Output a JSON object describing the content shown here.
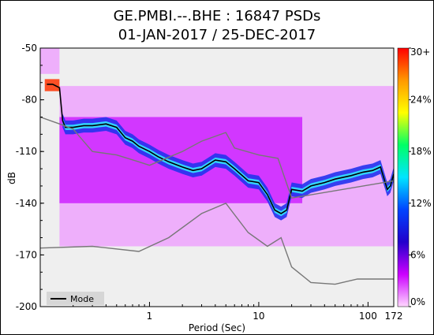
{
  "chart_data": {
    "type": "heatmap",
    "title": "GE.PMBI.--.BHE : 16847 PSDs",
    "subtitle": "01-JAN-2017 / 25-DEC-2017",
    "xlabel": "Period (Sec)",
    "ylabel": "dB",
    "x_scale": "log",
    "xlim": [
      0.1,
      172
    ],
    "ylim": [
      -200,
      -50
    ],
    "x_ticks": [
      1,
      10,
      100,
      172
    ],
    "x_tick_labels": [
      "1",
      "10",
      "100",
      "172"
    ],
    "y_ticks": [
      -50,
      -80,
      -110,
      -140,
      -170,
      -200
    ],
    "y_tick_labels": [
      "-50",
      "-80",
      "-110",
      "-140",
      "-170",
      "-200"
    ],
    "colorbar": {
      "labels": [
        "30+",
        "24%",
        "18%",
        "12%",
        "6%",
        "0%"
      ],
      "values": [
        30,
        24,
        18,
        12,
        6,
        0
      ],
      "colors": [
        "#ff0000",
        "#ff9900",
        "#ffff00",
        "#00ff66",
        "#00e5ff",
        "#0044ff",
        "#2200cc",
        "#cc00ff",
        "#ffd7ff"
      ]
    },
    "legend": {
      "placement": "bottom-left",
      "entries": [
        "Mode"
      ]
    },
    "background_color": "#efefef",
    "series": [
      {
        "name": "Mode",
        "color": "#000000",
        "points": [
          [
            0.115,
            -71
          ],
          [
            0.13,
            -71
          ],
          [
            0.15,
            -73
          ],
          [
            0.16,
            -92
          ],
          [
            0.17,
            -96
          ],
          [
            0.2,
            -96
          ],
          [
            0.25,
            -95
          ],
          [
            0.3,
            -95
          ],
          [
            0.4,
            -94
          ],
          [
            0.5,
            -96
          ],
          [
            0.6,
            -102
          ],
          [
            0.7,
            -104
          ],
          [
            0.8,
            -107
          ],
          [
            1.0,
            -110
          ],
          [
            1.2,
            -113
          ],
          [
            1.5,
            -116
          ],
          [
            2.0,
            -119
          ],
          [
            2.5,
            -121
          ],
          [
            3.0,
            -120
          ],
          [
            4.0,
            -115
          ],
          [
            5.0,
            -116
          ],
          [
            6.0,
            -120
          ],
          [
            8.0,
            -127
          ],
          [
            10.0,
            -128
          ],
          [
            12.0,
            -135
          ],
          [
            14.0,
            -144
          ],
          [
            16.0,
            -146
          ],
          [
            18.0,
            -144
          ],
          [
            20.0,
            -132
          ],
          [
            25.0,
            -133
          ],
          [
            30.0,
            -130
          ],
          [
            40.0,
            -128
          ],
          [
            50.0,
            -126
          ],
          [
            70.0,
            -124
          ],
          [
            90.0,
            -122
          ],
          [
            110.0,
            -121
          ],
          [
            130.0,
            -119
          ],
          [
            150.0,
            -132
          ],
          [
            160.0,
            -130
          ],
          [
            172.0,
            -123
          ]
        ]
      },
      {
        "name": "",
        "color": "#777777",
        "points": [
          [
            0.1,
            -90
          ],
          [
            0.15,
            -94
          ],
          [
            0.2,
            -97
          ],
          [
            0.3,
            -110
          ],
          [
            0.5,
            -112
          ],
          [
            0.8,
            -116
          ],
          [
            1.0,
            -118
          ],
          [
            2.0,
            -110
          ],
          [
            3.0,
            -104
          ],
          [
            5.0,
            -99
          ],
          [
            6.0,
            -108
          ],
          [
            10.0,
            -112
          ],
          [
            15.0,
            -114
          ],
          [
            20.0,
            -137
          ],
          [
            172.0,
            -127
          ]
        ]
      },
      {
        "name": "",
        "color": "#777777",
        "points": [
          [
            0.1,
            -166
          ],
          [
            0.3,
            -165
          ],
          [
            0.8,
            -168
          ],
          [
            1.5,
            -160
          ],
          [
            3.0,
            -146
          ],
          [
            5.0,
            -140
          ],
          [
            8.0,
            -157
          ],
          [
            12.0,
            -165
          ],
          [
            16.0,
            -160
          ],
          [
            20.0,
            -177
          ],
          [
            30.0,
            -186
          ],
          [
            50.0,
            -187
          ],
          [
            80.0,
            -184
          ],
          [
            172.0,
            -184
          ]
        ]
      }
    ],
    "density_bands": [
      {
        "x_range": [
          0.1,
          0.15
        ],
        "y_range": [
          -65,
          -48
        ],
        "level": "low"
      },
      {
        "x_range": [
          0.15,
          172
        ],
        "y_range": [
          -165,
          -72
        ],
        "level": "low"
      },
      {
        "x_range": [
          0.15,
          25
        ],
        "y_range": [
          -140,
          -90
        ],
        "level": "medium"
      },
      {
        "x_range": [
          0.11,
          0.15
        ],
        "y_range": [
          -75,
          -68
        ],
        "level": "max"
      }
    ]
  }
}
